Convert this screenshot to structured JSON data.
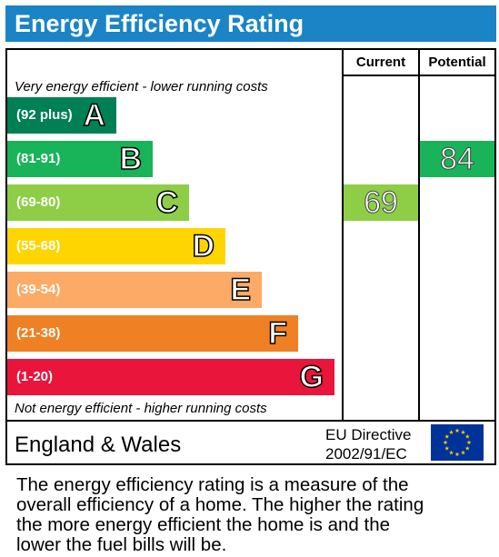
{
  "title": "Energy Efficiency Rating",
  "columns": {
    "current": "Current",
    "potential": "Potential"
  },
  "top_note": "Very energy efficient - lower running costs",
  "bottom_note": "Not energy efficient - higher running costs",
  "region": "England & Wales",
  "directive": {
    "line1": "EU Directive",
    "line2": "2002/91/EC"
  },
  "eu_flag_icon": "eu-flag-icon",
  "caption": {
    "lines": [
      "The energy efficiency rating is a measure of the",
      "overall efficiency of a home. The higher the rating",
      "the more energy efficient the home is and the",
      "lower the fuel bills will be."
    ]
  },
  "chart_data": {
    "type": "bar",
    "categories": [
      "A",
      "B",
      "C",
      "D",
      "E",
      "F",
      "G"
    ],
    "bands": [
      {
        "letter": "A",
        "range": "(92 plus)",
        "min": 92,
        "max": 100,
        "color": "#008054"
      },
      {
        "letter": "B",
        "range": "(81-91)",
        "min": 81,
        "max": 91,
        "color": "#19b459"
      },
      {
        "letter": "C",
        "range": "(69-80)",
        "min": 69,
        "max": 80,
        "color": "#8dce46"
      },
      {
        "letter": "D",
        "range": "(55-68)",
        "min": 55,
        "max": 68,
        "color": "#ffd500"
      },
      {
        "letter": "E",
        "range": "(39-54)",
        "min": 39,
        "max": 54,
        "color": "#fcaa65"
      },
      {
        "letter": "F",
        "range": "(21-38)",
        "min": 21,
        "max": 38,
        "color": "#ef8023"
      },
      {
        "letter": "G",
        "range": "(1-20)",
        "min": 1,
        "max": 20,
        "color": "#e9153b"
      }
    ],
    "current": {
      "value": 69,
      "band": "C",
      "color": "#8dce46"
    },
    "potential": {
      "value": 84,
      "band": "B",
      "color": "#19b459"
    }
  }
}
